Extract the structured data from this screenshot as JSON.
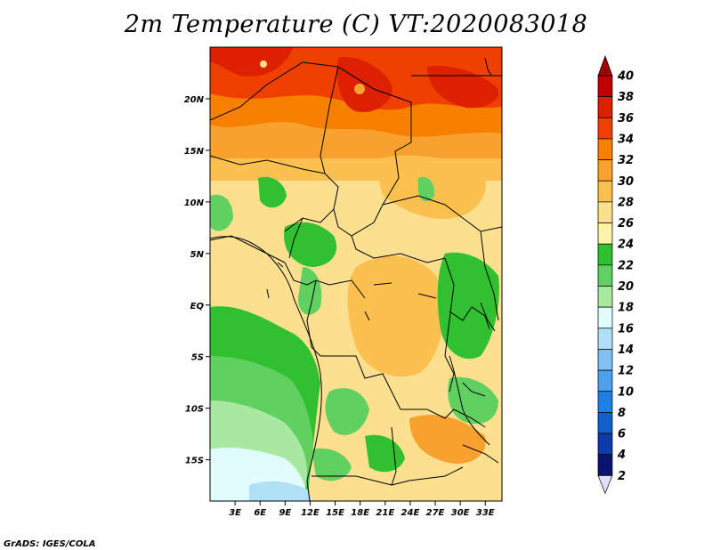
{
  "title": "2m Temperature (C) VT:2020083018",
  "credit": "GrADS: IGES/COLA",
  "map": {
    "lon_range": [
      0,
      35
    ],
    "lat_range": [
      -19,
      25
    ],
    "lat_labels": [
      {
        "lat": 20,
        "label": "20N"
      },
      {
        "lat": 15,
        "label": "15N"
      },
      {
        "lat": 10,
        "label": "10N"
      },
      {
        "lat": 5,
        "label": "5N"
      },
      {
        "lat": 0,
        "label": "EQ"
      },
      {
        "lat": -5,
        "label": "5S"
      },
      {
        "lat": -10,
        "label": "10S"
      },
      {
        "lat": -15,
        "label": "15S"
      }
    ],
    "lon_labels": [
      {
        "lon": 3,
        "label": "3E"
      },
      {
        "lon": 6,
        "label": "6E"
      },
      {
        "lon": 9,
        "label": "9E"
      },
      {
        "lon": 12,
        "label": "12E"
      },
      {
        "lon": 15,
        "label": "15E"
      },
      {
        "lon": 18,
        "label": "18E"
      },
      {
        "lon": 21,
        "label": "21E"
      },
      {
        "lon": 24,
        "label": "24E"
      },
      {
        "lon": 27,
        "label": "27E"
      },
      {
        "lon": 30,
        "label": "30E"
      },
      {
        "lon": 33,
        "label": "33E"
      }
    ]
  },
  "colorbar": {
    "levels": [
      {
        "value": "40",
        "color": "#a00000"
      },
      {
        "value": "38",
        "color": "#c00000"
      },
      {
        "value": "36",
        "color": "#dc2000"
      },
      {
        "value": "34",
        "color": "#f04000"
      },
      {
        "value": "32",
        "color": "#f88000"
      },
      {
        "value": "30",
        "color": "#f8a030"
      },
      {
        "value": "28",
        "color": "#fcc050"
      },
      {
        "value": "26",
        "color": "#fce090"
      },
      {
        "value": "24",
        "color": "#fcf4a8"
      },
      {
        "value": "22",
        "color": "#30c030"
      },
      {
        "value": "20",
        "color": "#60d060"
      },
      {
        "value": "18",
        "color": "#a8e8a0"
      },
      {
        "value": "16",
        "color": "#e0fcfc"
      },
      {
        "value": "14",
        "color": "#b0e0f8"
      },
      {
        "value": "12",
        "color": "#80c0f4"
      },
      {
        "value": "10",
        "color": "#4ca0ec"
      },
      {
        "value": "8",
        "color": "#2080e0"
      },
      {
        "value": "6",
        "color": "#1460c8"
      },
      {
        "value": "4",
        "color": "#0c3ca8"
      },
      {
        "value": "2",
        "color": "#0a1470"
      }
    ],
    "top_color": "#a00000",
    "bottom_color": "#e0e0f8"
  }
}
